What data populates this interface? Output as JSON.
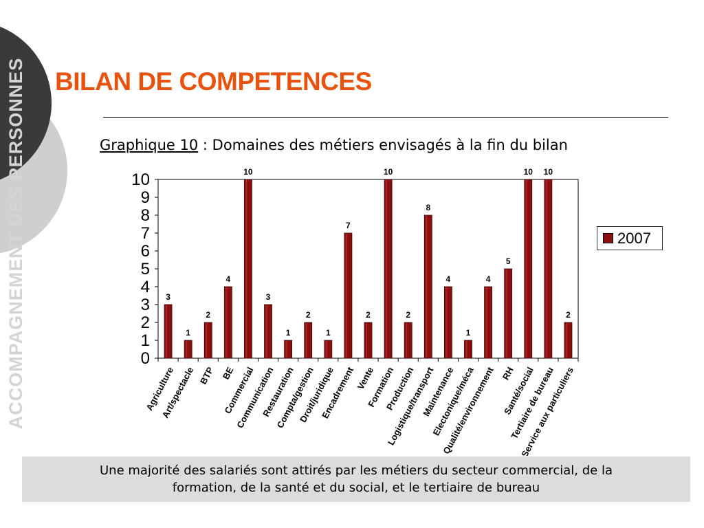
{
  "slide": {
    "title": "BILAN DE COMPETENCES",
    "side_text": "ACCOMPAGNEMENT DES PERSONNES"
  },
  "caption": {
    "prefix": "Graphique 10",
    "rest": " : Domaines des métiers envisagés à la fin du bilan"
  },
  "summary": {
    "line1": "Une majorité des salariés sont attirés par les métiers du secteur commercial, de la",
    "line2": "formation, de la santé et du social, et le tertiaire de bureau"
  },
  "colors": {
    "title": "#e8520f",
    "bar": "#8b0f0f",
    "side_circle_dark": "#3a3a3a",
    "side_circle_light": "#cfcfcf",
    "summary_bg": "#dcdcdc"
  },
  "chart_data": {
    "type": "bar",
    "title": "",
    "xlabel": "",
    "ylabel": "",
    "ylim": [
      0,
      10
    ],
    "yticks": [
      "0",
      "1",
      "2",
      "3",
      "4",
      "5",
      "6",
      "7",
      "8",
      "9",
      "10"
    ],
    "grid": false,
    "legend": "right",
    "categories": [
      "Agriculture",
      "Art/spectacle",
      "BTP",
      "BE",
      "Commercial",
      "Communication",
      "Restauration",
      "Compta/gestion",
      "Droit/juridique",
      "Encadrement",
      "Vente",
      "Formation",
      "Production",
      "Logistique/transport",
      "Maintenance",
      "Electonique/méca",
      "Qualité/environnement",
      "RH",
      "Santé/social",
      "Tertiaire de bureau",
      "Service aux particuliers"
    ],
    "series": [
      {
        "name": "2007",
        "values": [
          3,
          1,
          2,
          4,
          10,
          3,
          1,
          2,
          1,
          7,
          2,
          10,
          2,
          8,
          4,
          1,
          4,
          5,
          10,
          10,
          2
        ],
        "labels": [
          "3",
          "1",
          "2",
          "4",
          "10",
          "3",
          "1",
          "2",
          "1",
          "7",
          "2",
          "10",
          "2",
          "8",
          "4",
          "1",
          "4",
          "5",
          "10",
          "10",
          "2"
        ]
      }
    ]
  }
}
